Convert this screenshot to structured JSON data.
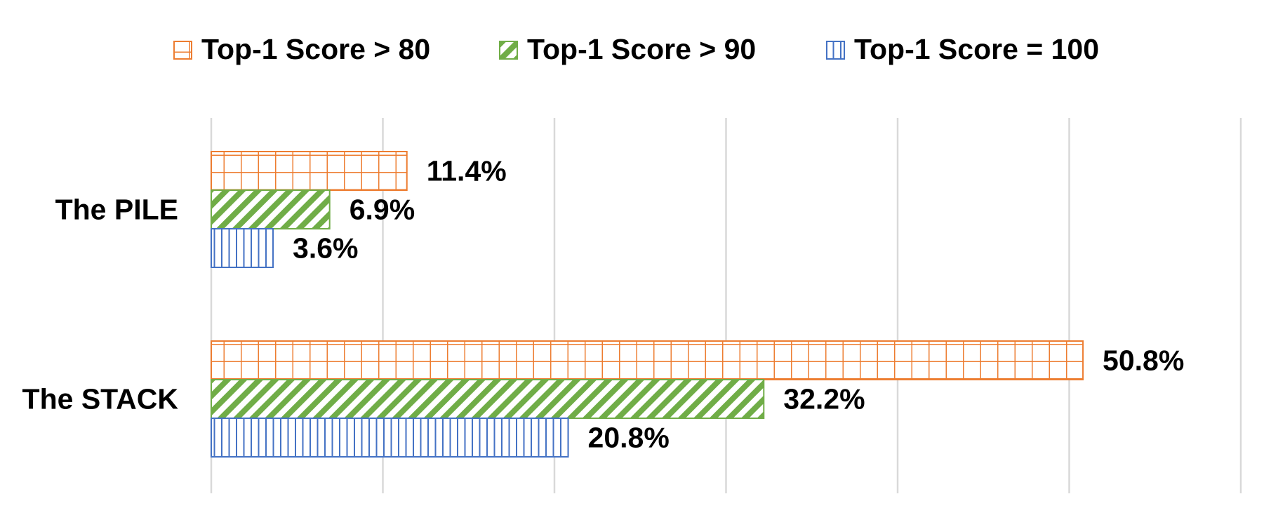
{
  "chart_data": {
    "type": "bar",
    "orientation": "horizontal",
    "categories": [
      "The PILE",
      "The STACK"
    ],
    "series": [
      {
        "name": "Top-1 Score > 80",
        "values": [
          11.4,
          50.8
        ],
        "labels": [
          "11.4%",
          "50.8%"
        ],
        "color": "#ED7D31",
        "pattern": "grid"
      },
      {
        "name": "Top-1 Score > 90",
        "values": [
          6.9,
          32.2
        ],
        "labels": [
          "6.9%",
          "32.2%"
        ],
        "color": "#70AD47",
        "pattern": "diagonal"
      },
      {
        "name": "Top-1 Score = 100",
        "values": [
          3.6,
          20.8
        ],
        "labels": [
          "3.6%",
          "20.8%"
        ],
        "color": "#4472C4",
        "pattern": "vertical"
      }
    ],
    "xlim": [
      0,
      60
    ],
    "grid": true,
    "legend": "top",
    "title": "",
    "xlabel": "",
    "ylabel": ""
  }
}
